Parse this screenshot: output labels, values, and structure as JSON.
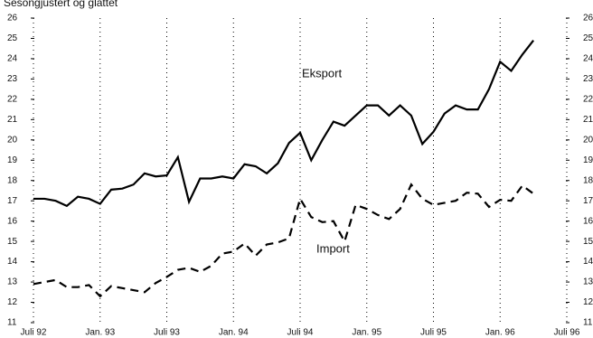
{
  "chart_data": {
    "type": "line",
    "title": "Sesongjustert og glattet",
    "x": [
      0,
      1,
      2,
      3,
      4,
      5,
      6,
      7,
      8,
      9,
      10,
      11,
      12,
      13,
      14,
      15,
      16,
      17,
      18,
      19,
      20,
      21,
      22,
      23,
      24,
      25,
      26,
      27,
      28,
      29,
      30,
      31,
      32,
      33,
      34,
      35,
      36,
      37,
      38,
      39,
      40,
      41,
      42,
      43,
      44,
      45
    ],
    "xlim": [
      0,
      48
    ],
    "xticks": [
      {
        "value": 0,
        "label": "Juli 92"
      },
      {
        "value": 6,
        "label": "Jan. 93"
      },
      {
        "value": 12,
        "label": "Juli 93"
      },
      {
        "value": 18,
        "label": "Jan. 94"
      },
      {
        "value": 24,
        "label": "Juli 94"
      },
      {
        "value": 30,
        "label": "Jan. 95"
      },
      {
        "value": 36,
        "label": "Juli 95"
      },
      {
        "value": 42,
        "label": "Jan. 96"
      },
      {
        "value": 48,
        "label": "Juli 96"
      }
    ],
    "ylim": [
      11,
      26
    ],
    "yticks": [
      11,
      12,
      13,
      14,
      15,
      16,
      17,
      18,
      19,
      20,
      21,
      22,
      23,
      24,
      25,
      26
    ],
    "grid": true,
    "series": [
      {
        "name": "Eksport",
        "color": "#000000",
        "style": "solid",
        "values": [
          17.1,
          17.1,
          17.0,
          16.75,
          17.2,
          17.1,
          16.85,
          17.55,
          17.6,
          17.8,
          18.35,
          18.2,
          18.25,
          19.15,
          16.95,
          18.1,
          18.1,
          18.2,
          18.1,
          18.8,
          18.7,
          18.35,
          18.85,
          19.85,
          20.35,
          19.0,
          20.0,
          20.9,
          20.7,
          21.2,
          21.7,
          21.7,
          21.2,
          21.7,
          21.2,
          19.8,
          20.4,
          21.3,
          21.7,
          21.5,
          21.5,
          22.5,
          23.85,
          23.4,
          24.2,
          24.9
        ]
      },
      {
        "name": "Import",
        "color": "#000000",
        "style": "dashed",
        "values": [
          12.9,
          13.0,
          13.1,
          12.75,
          12.75,
          12.85,
          12.3,
          12.8,
          12.7,
          12.6,
          12.5,
          12.95,
          13.25,
          13.6,
          13.7,
          13.5,
          13.8,
          14.4,
          14.5,
          14.9,
          14.3,
          14.85,
          14.95,
          15.15,
          17.1,
          16.2,
          15.95,
          16.0,
          15.0,
          16.8,
          16.6,
          16.3,
          16.1,
          16.6,
          17.8,
          17.1,
          16.8,
          16.9,
          17.0,
          17.4,
          17.35,
          16.7,
          17.05,
          17.0,
          17.75,
          17.35
        ]
      }
    ]
  }
}
